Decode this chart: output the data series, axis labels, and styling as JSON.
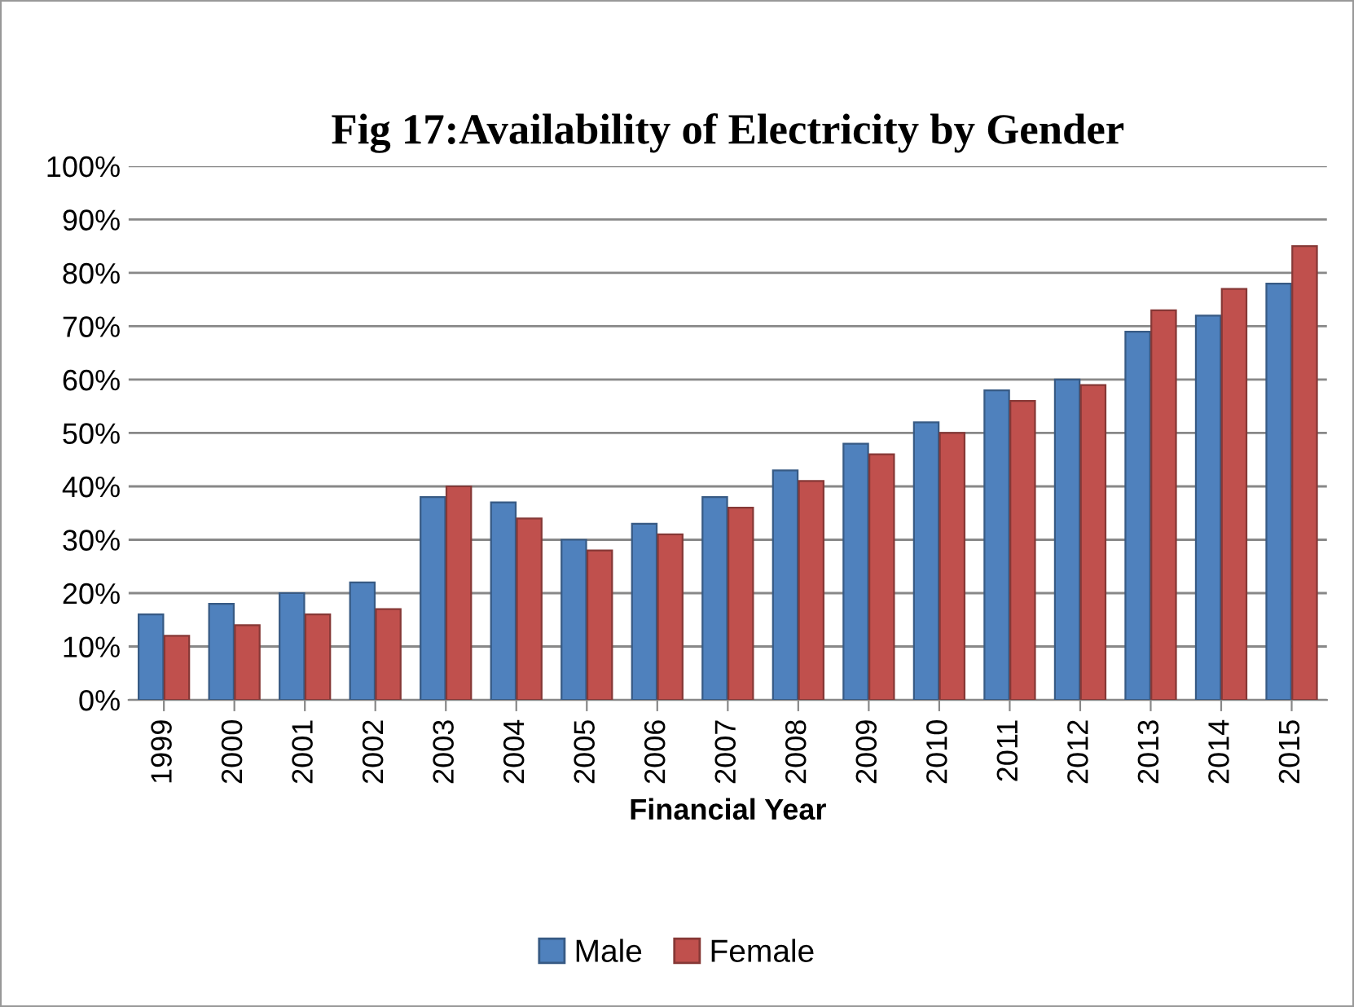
{
  "chart_data": {
    "type": "bar",
    "title": "Fig 17:Availability of Electricity by Gender",
    "xlabel": "Financial Year",
    "categories": [
      "1999",
      "2000",
      "2001",
      "2002",
      "2003",
      "2004",
      "2005",
      "2006",
      "2007",
      "2008",
      "2009",
      "2010",
      "2011",
      "2012",
      "2013",
      "2014",
      "2015"
    ],
    "series": [
      {
        "name": "Male",
        "color": "#4f81bd",
        "values": [
          16,
          18,
          20,
          22,
          38,
          37,
          30,
          33,
          38,
          43,
          48,
          52,
          58,
          60,
          69,
          72,
          78
        ]
      },
      {
        "name": "Female",
        "color": "#c0504d",
        "values": [
          12,
          14,
          16,
          17,
          40,
          34,
          28,
          31,
          36,
          41,
          46,
          50,
          56,
          59,
          73,
          77,
          85
        ]
      }
    ],
    "ylim": [
      0,
      100
    ],
    "yticks": [
      {
        "value": 0,
        "label": "0%"
      },
      {
        "value": 10,
        "label": "10%"
      },
      {
        "value": 20,
        "label": "20%"
      },
      {
        "value": 30,
        "label": "30%"
      },
      {
        "value": 40,
        "label": "40%"
      },
      {
        "value": 50,
        "label": "50%"
      },
      {
        "value": 60,
        "label": "60%"
      },
      {
        "value": 70,
        "label": "70%"
      },
      {
        "value": 80,
        "label": "80%"
      },
      {
        "value": 90,
        "label": "90%"
      },
      {
        "value": 100,
        "label": "100%"
      }
    ],
    "grid": "y",
    "legend": "bottom"
  }
}
